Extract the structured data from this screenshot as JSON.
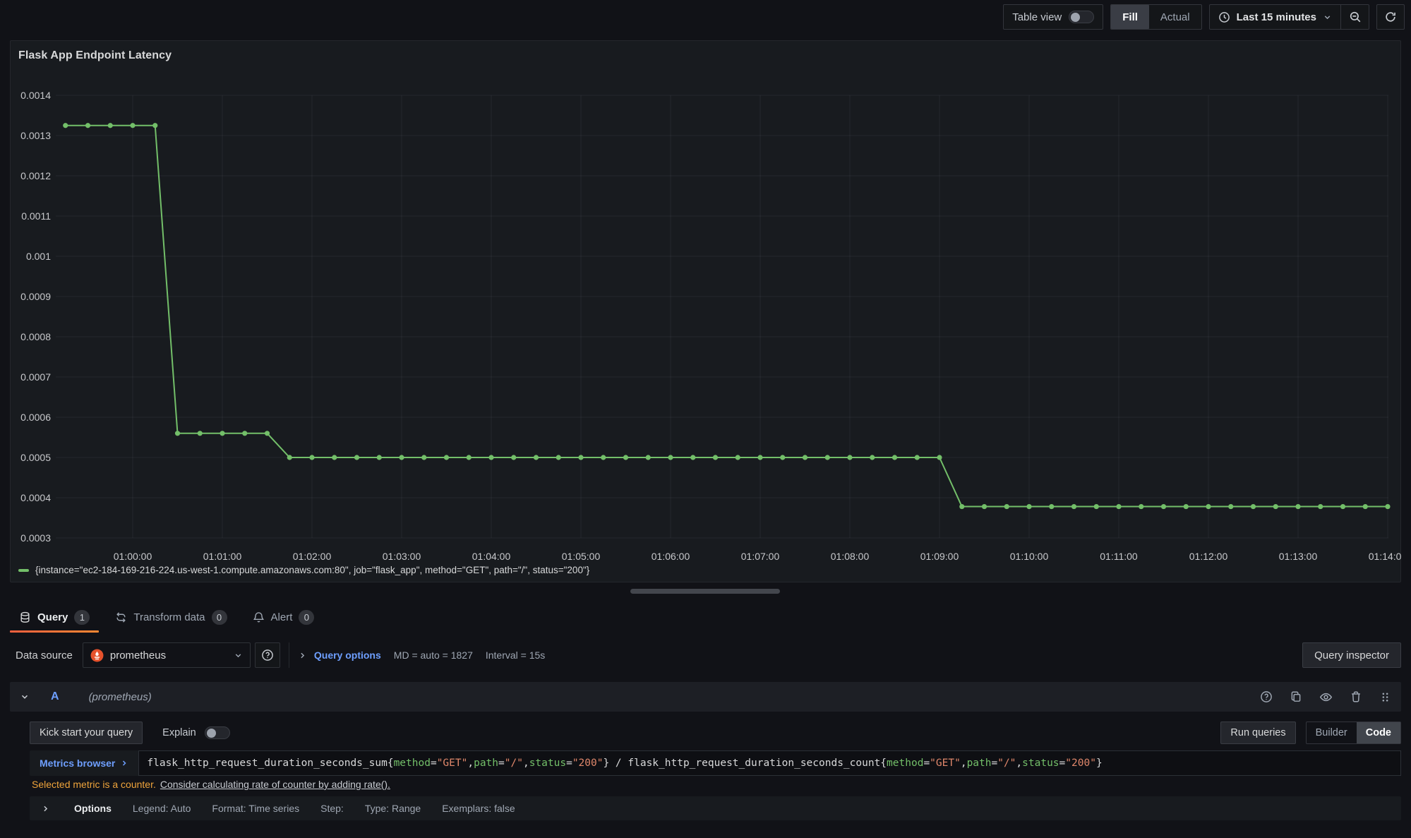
{
  "toolbar": {
    "table_view_label": "Table view",
    "fill_label": "Fill",
    "actual_label": "Actual",
    "time_range_label": "Last 15 minutes"
  },
  "panel": {
    "title": "Flask App Endpoint Latency"
  },
  "chart_data": {
    "type": "line",
    "title": "Flask App Endpoint Latency",
    "series": [
      {
        "name": "{instance=\"ec2-184-169-216-224.us-west-1.compute.amazonaws.com:80\", job=\"flask_app\", method=\"GET\", path=\"/\", status=\"200\"}",
        "color": "#73bf69",
        "points": [
          [
            "00:59:15",
            0.001325
          ],
          [
            "00:59:30",
            0.001325
          ],
          [
            "00:59:45",
            0.001325
          ],
          [
            "01:00:00",
            0.001325
          ],
          [
            "01:00:15",
            0.001325
          ],
          [
            "01:00:30",
            0.00056
          ],
          [
            "01:00:45",
            0.00056
          ],
          [
            "01:01:00",
            0.00056
          ],
          [
            "01:01:15",
            0.00056
          ],
          [
            "01:01:30",
            0.00056
          ],
          [
            "01:01:45",
            0.0005
          ],
          [
            "01:02:00",
            0.0005
          ],
          [
            "01:02:15",
            0.0005
          ],
          [
            "01:02:30",
            0.0005
          ],
          [
            "01:02:45",
            0.0005
          ],
          [
            "01:03:00",
            0.0005
          ],
          [
            "01:03:15",
            0.0005
          ],
          [
            "01:03:30",
            0.0005
          ],
          [
            "01:03:45",
            0.0005
          ],
          [
            "01:04:00",
            0.0005
          ],
          [
            "01:04:15",
            0.0005
          ],
          [
            "01:04:30",
            0.0005
          ],
          [
            "01:04:45",
            0.0005
          ],
          [
            "01:05:00",
            0.0005
          ],
          [
            "01:05:15",
            0.0005
          ],
          [
            "01:05:30",
            0.0005
          ],
          [
            "01:05:45",
            0.0005
          ],
          [
            "01:06:00",
            0.0005
          ],
          [
            "01:06:15",
            0.0005
          ],
          [
            "01:06:30",
            0.0005
          ],
          [
            "01:06:45",
            0.0005
          ],
          [
            "01:07:00",
            0.0005
          ],
          [
            "01:07:15",
            0.0005
          ],
          [
            "01:07:30",
            0.0005
          ],
          [
            "01:07:45",
            0.0005
          ],
          [
            "01:08:00",
            0.0005
          ],
          [
            "01:08:15",
            0.0005
          ],
          [
            "01:08:30",
            0.0005
          ],
          [
            "01:08:45",
            0.0005
          ],
          [
            "01:09:00",
            0.0005
          ],
          [
            "01:09:15",
            0.000378
          ],
          [
            "01:09:30",
            0.000378
          ],
          [
            "01:09:45",
            0.000378
          ],
          [
            "01:10:00",
            0.000378
          ],
          [
            "01:10:15",
            0.000378
          ],
          [
            "01:10:30",
            0.000378
          ],
          [
            "01:10:45",
            0.000378
          ],
          [
            "01:11:00",
            0.000378
          ],
          [
            "01:11:15",
            0.000378
          ],
          [
            "01:11:30",
            0.000378
          ],
          [
            "01:11:45",
            0.000378
          ],
          [
            "01:12:00",
            0.000378
          ],
          [
            "01:12:15",
            0.000378
          ],
          [
            "01:12:30",
            0.000378
          ],
          [
            "01:12:45",
            0.000378
          ],
          [
            "01:13:00",
            0.000378
          ],
          [
            "01:13:15",
            0.000378
          ],
          [
            "01:13:30",
            0.000378
          ],
          [
            "01:13:45",
            0.000378
          ],
          [
            "01:14:00",
            0.000378
          ]
        ]
      }
    ],
    "y_ticks": [
      {
        "v": 0.0014,
        "label": "0.0014"
      },
      {
        "v": 0.0013,
        "label": "0.0013"
      },
      {
        "v": 0.0012,
        "label": "0.0012"
      },
      {
        "v": 0.0011,
        "label": "0.0011"
      },
      {
        "v": 0.001,
        "label": "0.001"
      },
      {
        "v": 0.0009,
        "label": "0.0009"
      },
      {
        "v": 0.0008,
        "label": "0.0008"
      },
      {
        "v": 0.0007,
        "label": "0.0007"
      },
      {
        "v": 0.0006,
        "label": "0.0006"
      },
      {
        "v": 0.0005,
        "label": "0.0005"
      },
      {
        "v": 0.0004,
        "label": "0.0004"
      },
      {
        "v": 0.0003,
        "label": "0.0003"
      }
    ],
    "x_ticks": [
      "01:00:00",
      "01:01:00",
      "01:02:00",
      "01:03:00",
      "01:04:00",
      "01:05:00",
      "01:06:00",
      "01:07:00",
      "01:08:00",
      "01:09:00",
      "01:10:00",
      "01:11:00",
      "01:12:00",
      "01:13:00",
      "01:14:00"
    ],
    "xlabel": "",
    "ylabel": "",
    "ylim": [
      0.00028,
      0.00145
    ],
    "x_range": [
      "00:59:07",
      "01:14:03"
    ],
    "grid": true,
    "legend_position": "bottom"
  },
  "tabs": [
    {
      "label": "Query",
      "badge": "1",
      "active": true
    },
    {
      "label": "Transform data",
      "badge": "0",
      "active": false
    },
    {
      "label": "Alert",
      "badge": "0",
      "active": false
    }
  ],
  "datasource_row": {
    "label": "Data source",
    "value": "prometheus",
    "query_options_label": "Query options",
    "md_text": "MD = auto = 1827",
    "interval_text": "Interval = 15s",
    "query_inspector_label": "Query inspector"
  },
  "query_row": {
    "ref_id": "A",
    "datasource_hint": "(prometheus)",
    "kick_start_label": "Kick start your query",
    "explain_label": "Explain",
    "run_queries_label": "Run queries",
    "builder_label": "Builder",
    "code_label": "Code",
    "metrics_browser_label": "Metrics browser",
    "query_tokens": [
      {
        "t": "flask_http_request_duration_seconds_sum{",
        "c": "plain"
      },
      {
        "t": "method",
        "c": "label"
      },
      {
        "t": "=",
        "c": "plain"
      },
      {
        "t": "\"GET\"",
        "c": "string"
      },
      {
        "t": ",",
        "c": "plain"
      },
      {
        "t": "path",
        "c": "label"
      },
      {
        "t": "=",
        "c": "plain"
      },
      {
        "t": "\"/\"",
        "c": "string"
      },
      {
        "t": ",",
        "c": "plain"
      },
      {
        "t": "status",
        "c": "label"
      },
      {
        "t": "=",
        "c": "plain"
      },
      {
        "t": "\"200\"",
        "c": "string"
      },
      {
        "t": "} / flask_http_request_duration_seconds_count{",
        "c": "plain"
      },
      {
        "t": "method",
        "c": "label"
      },
      {
        "t": "=",
        "c": "plain"
      },
      {
        "t": "\"GET\"",
        "c": "string"
      },
      {
        "t": ",",
        "c": "plain"
      },
      {
        "t": "path",
        "c": "label"
      },
      {
        "t": "=",
        "c": "plain"
      },
      {
        "t": "\"/\"",
        "c": "string"
      },
      {
        "t": ",",
        "c": "plain"
      },
      {
        "t": "status",
        "c": "label"
      },
      {
        "t": "=",
        "c": "plain"
      },
      {
        "t": "\"200\"",
        "c": "string"
      },
      {
        "t": "}",
        "c": "plain"
      }
    ],
    "warning_text": "Selected metric is a counter.",
    "warning_link": "Consider calculating rate of counter by adding rate().",
    "options_label": "Options",
    "options_items": [
      "Legend: Auto",
      "Format: Time series",
      "Step:",
      "Type: Range",
      "Exemplars: false"
    ]
  },
  "colors": {
    "series_green": "#73bf69",
    "link_blue": "#6e9fff",
    "warning_orange": "#efa43b",
    "tab_accent_start": "#f55f3e",
    "tab_accent_end": "#ff8833",
    "prometheus_orange": "#e6522c",
    "background": "#111217",
    "panel_background": "#181b1f"
  }
}
